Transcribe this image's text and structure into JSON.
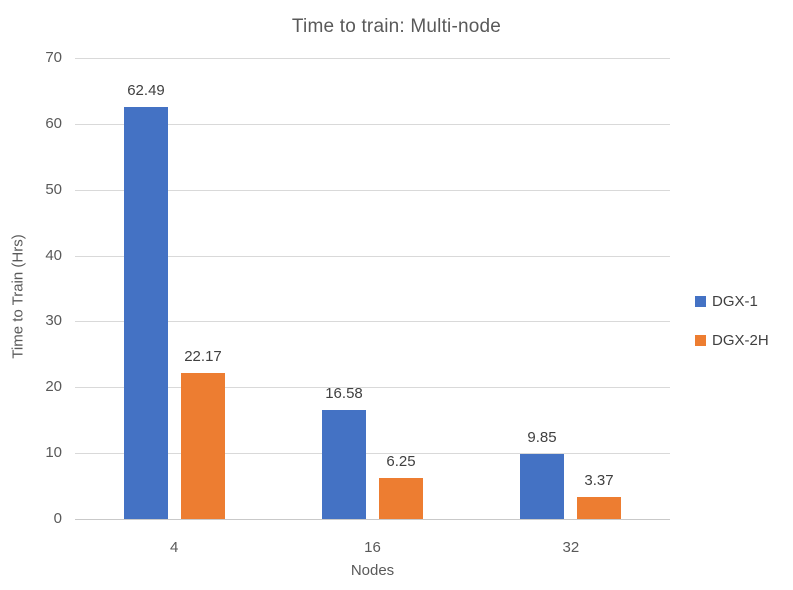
{
  "chart_data": {
    "type": "bar",
    "title": "Time to train: Multi-node",
    "xlabel": "Nodes",
    "ylabel": "Time to Train (Hrs)",
    "categories": [
      "4",
      "16",
      "32"
    ],
    "series": [
      {
        "name": "DGX-1",
        "color": "#4472C4",
        "values": [
          62.49,
          16.58,
          9.85
        ]
      },
      {
        "name": "DGX-2H",
        "color": "#ED7D31",
        "values": [
          22.17,
          6.25,
          3.37
        ]
      }
    ],
    "ylim": [
      0,
      70
    ],
    "ytick_step": 10,
    "yticks": [
      "0",
      "10",
      "20",
      "30",
      "40",
      "50",
      "60",
      "70"
    ],
    "grid": true,
    "data_labels": true,
    "legend_position": "right",
    "colors": {
      "title_text": "#595959",
      "axis_text": "#595959",
      "data_label_text": "#404040",
      "gridline": "#D9D9D9",
      "background": "#FFFFFF"
    }
  }
}
